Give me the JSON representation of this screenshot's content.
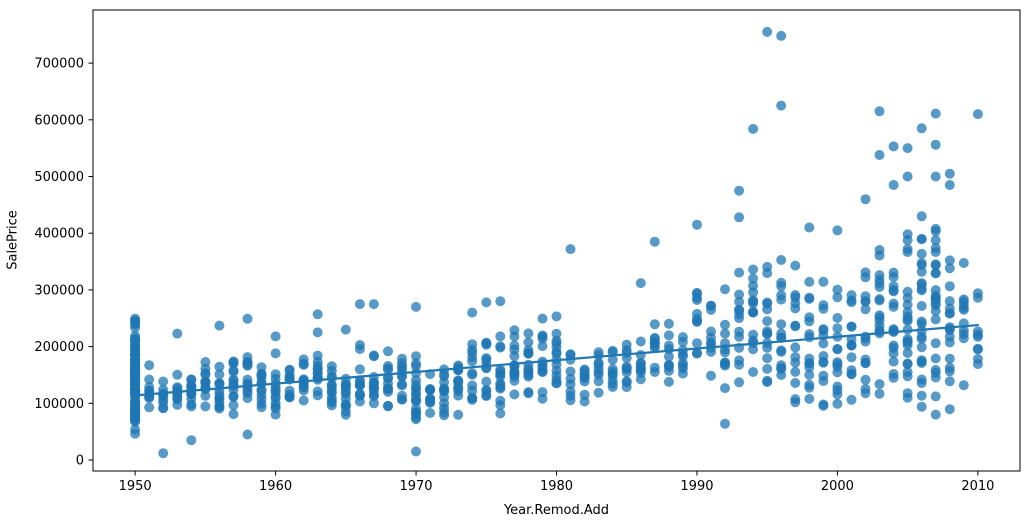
{
  "chart_data": {
    "type": "scatter",
    "title": "",
    "xlabel": "Year.Remod.Add",
    "ylabel": "SalePrice",
    "xlim": [
      1947,
      2013
    ],
    "ylim": [
      -19400,
      793650
    ],
    "xticks": [
      1950,
      1960,
      1970,
      1980,
      1990,
      2000,
      2010
    ],
    "yticks": [
      0,
      100000,
      200000,
      300000,
      400000,
      500000,
      600000,
      700000
    ],
    "grid": false,
    "legend": null,
    "background": "#ffffff",
    "spine_color": "#000000",
    "marker": {
      "color": "#1f77b4",
      "opacity": 0.75,
      "radius": 5
    },
    "trendline": {
      "x": [
        1950,
        2010
      ],
      "y": [
        114000,
        238000
      ],
      "color": "#1f77b4",
      "width": 2.2
    },
    "columns": [
      {
        "year": 1950,
        "min": 33000,
        "max": 262000,
        "n": 115,
        "outliers": []
      },
      {
        "year": 1951,
        "min": 60000,
        "max": 170000,
        "n": 10,
        "outliers": []
      },
      {
        "year": 1952,
        "min": 80000,
        "max": 150000,
        "n": 9,
        "outliers": [
          12000
        ]
      },
      {
        "year": 1953,
        "min": 75000,
        "max": 165000,
        "n": 11,
        "outliers": [
          223000
        ]
      },
      {
        "year": 1954,
        "min": 75000,
        "max": 175000,
        "n": 13,
        "outliers": [
          35000
        ]
      },
      {
        "year": 1955,
        "min": 85000,
        "max": 185000,
        "n": 13,
        "outliers": []
      },
      {
        "year": 1956,
        "min": 80000,
        "max": 190000,
        "n": 13,
        "outliers": [
          237000
        ]
      },
      {
        "year": 1957,
        "min": 90000,
        "max": 200000,
        "n": 13,
        "outliers": [
          81000
        ]
      },
      {
        "year": 1958,
        "min": 85000,
        "max": 195000,
        "n": 13,
        "outliers": [
          249000,
          45000
        ]
      },
      {
        "year": 1959,
        "min": 80000,
        "max": 185000,
        "n": 13,
        "outliers": []
      },
      {
        "year": 1960,
        "min": 85000,
        "max": 195000,
        "n": 12,
        "outliers": [
          218000,
          80000
        ]
      },
      {
        "year": 1961,
        "min": 90000,
        "max": 180000,
        "n": 11,
        "outliers": []
      },
      {
        "year": 1962,
        "min": 95000,
        "max": 200000,
        "n": 12,
        "outliers": []
      },
      {
        "year": 1963,
        "min": 90000,
        "max": 205000,
        "n": 13,
        "outliers": [
          257000,
          225000
        ]
      },
      {
        "year": 1964,
        "min": 95000,
        "max": 200000,
        "n": 13,
        "outliers": []
      },
      {
        "year": 1965,
        "min": 60000,
        "max": 210000,
        "n": 13,
        "outliers": [
          230000
        ]
      },
      {
        "year": 1966,
        "min": 90000,
        "max": 210000,
        "n": 12,
        "outliers": [
          275000
        ]
      },
      {
        "year": 1967,
        "min": 85000,
        "max": 220000,
        "n": 13,
        "outliers": [
          275000
        ]
      },
      {
        "year": 1968,
        "min": 80000,
        "max": 215000,
        "n": 13,
        "outliers": []
      },
      {
        "year": 1969,
        "min": 85000,
        "max": 200000,
        "n": 12,
        "outliers": []
      },
      {
        "year": 1970,
        "min": 65000,
        "max": 215000,
        "n": 20,
        "outliers": [
          270000,
          15000
        ]
      },
      {
        "year": 1971,
        "min": 75000,
        "max": 180000,
        "n": 11,
        "outliers": []
      },
      {
        "year": 1972,
        "min": 70000,
        "max": 185000,
        "n": 13,
        "outliers": []
      },
      {
        "year": 1973,
        "min": 75000,
        "max": 200000,
        "n": 13,
        "outliers": []
      },
      {
        "year": 1974,
        "min": 80000,
        "max": 215000,
        "n": 12,
        "outliers": [
          260000
        ]
      },
      {
        "year": 1975,
        "min": 75000,
        "max": 230000,
        "n": 13,
        "outliers": [
          278000
        ]
      },
      {
        "year": 1976,
        "min": 75000,
        "max": 235000,
        "n": 15,
        "outliers": [
          280000
        ]
      },
      {
        "year": 1977,
        "min": 70000,
        "max": 245000,
        "n": 15,
        "outliers": []
      },
      {
        "year": 1978,
        "min": 90000,
        "max": 250000,
        "n": 14,
        "outliers": []
      },
      {
        "year": 1979,
        "min": 95000,
        "max": 265000,
        "n": 13,
        "outliers": []
      },
      {
        "year": 1980,
        "min": 100000,
        "max": 275000,
        "n": 14,
        "outliers": []
      },
      {
        "year": 1981,
        "min": 95000,
        "max": 215000,
        "n": 9,
        "outliers": [
          372000
        ]
      },
      {
        "year": 1982,
        "min": 90000,
        "max": 200000,
        "n": 9,
        "outliers": []
      },
      {
        "year": 1983,
        "min": 100000,
        "max": 210000,
        "n": 9,
        "outliers": []
      },
      {
        "year": 1984,
        "min": 110000,
        "max": 215000,
        "n": 10,
        "outliers": []
      },
      {
        "year": 1985,
        "min": 115000,
        "max": 255000,
        "n": 11,
        "outliers": []
      },
      {
        "year": 1986,
        "min": 120000,
        "max": 250000,
        "n": 10,
        "outliers": [
          312000
        ]
      },
      {
        "year": 1987,
        "min": 130000,
        "max": 260000,
        "n": 10,
        "outliers": [
          385000
        ]
      },
      {
        "year": 1988,
        "min": 130000,
        "max": 245000,
        "n": 10,
        "outliers": []
      },
      {
        "year": 1989,
        "min": 135000,
        "max": 255000,
        "n": 9,
        "outliers": []
      },
      {
        "year": 1990,
        "min": 140000,
        "max": 335000,
        "n": 11,
        "outliers": [
          415000
        ]
      },
      {
        "year": 1991,
        "min": 135000,
        "max": 300000,
        "n": 10,
        "outliers": []
      },
      {
        "year": 1992,
        "min": 100000,
        "max": 320000,
        "n": 11,
        "outliers": [
          64000
        ]
      },
      {
        "year": 1993,
        "min": 105000,
        "max": 345000,
        "n": 13,
        "outliers": [
          475000,
          428000
        ]
      },
      {
        "year": 1994,
        "min": 100000,
        "max": 360000,
        "n": 15,
        "outliers": [
          584000
        ]
      },
      {
        "year": 1995,
        "min": 95000,
        "max": 365000,
        "n": 15,
        "outliers": [
          755000
        ]
      },
      {
        "year": 1996,
        "min": 90000,
        "max": 400000,
        "n": 15,
        "outliers": [
          748000,
          625000
        ]
      },
      {
        "year": 1997,
        "min": 85000,
        "max": 380000,
        "n": 14,
        "outliers": []
      },
      {
        "year": 1998,
        "min": 80000,
        "max": 345000,
        "n": 15,
        "outliers": [
          410000
        ]
      },
      {
        "year": 1999,
        "min": 85000,
        "max": 340000,
        "n": 14,
        "outliers": []
      },
      {
        "year": 2000,
        "min": 80000,
        "max": 335000,
        "n": 15,
        "outliers": [
          405000
        ]
      },
      {
        "year": 2001,
        "min": 85000,
        "max": 345000,
        "n": 14,
        "outliers": []
      },
      {
        "year": 2002,
        "min": 80000,
        "max": 380000,
        "n": 15,
        "outliers": [
          460000
        ]
      },
      {
        "year": 2003,
        "min": 75000,
        "max": 395000,
        "n": 17,
        "outliers": [
          538000,
          615000
        ]
      },
      {
        "year": 2004,
        "min": 70000,
        "max": 420000,
        "n": 17,
        "outliers": [
          553000,
          485000
        ]
      },
      {
        "year": 2005,
        "min": 75000,
        "max": 445000,
        "n": 23,
        "outliers": [
          550000,
          500000
        ]
      },
      {
        "year": 2006,
        "min": 70000,
        "max": 475000,
        "n": 25,
        "outliers": [
          585000
        ]
      },
      {
        "year": 2007,
        "min": 62000,
        "max": 465000,
        "n": 25,
        "outliers": [
          611000,
          556000,
          500000
        ]
      },
      {
        "year": 2008,
        "min": 80000,
        "max": 400000,
        "n": 17,
        "outliers": [
          485000,
          505000
        ]
      },
      {
        "year": 2009,
        "min": 95000,
        "max": 375000,
        "n": 11,
        "outliers": []
      },
      {
        "year": 2010,
        "min": 125000,
        "max": 400000,
        "n": 9,
        "outliers": [
          610000
        ]
      }
    ]
  }
}
